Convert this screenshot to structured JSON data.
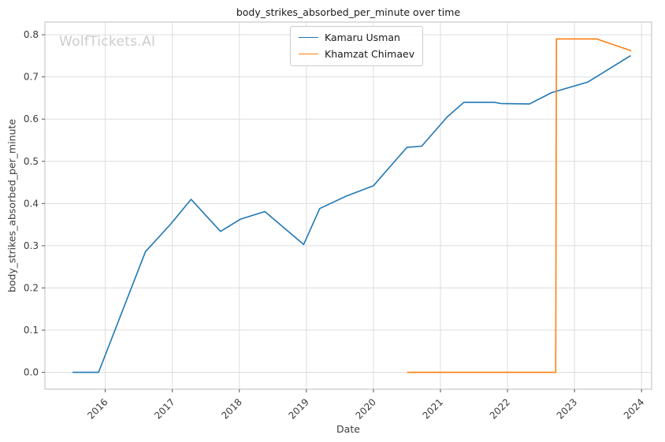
{
  "chart_data": {
    "type": "line",
    "title": "body_strikes_absorbed_per_minute over time",
    "xlabel": "Date",
    "ylabel": "body_strikes_absorbed_per_minute",
    "watermark": "WolfTickets.AI",
    "grid": true,
    "legend_position": "upper center",
    "xlim": [
      2015.1,
      2024.15
    ],
    "ylim": [
      -0.04,
      0.83
    ],
    "x_tick_values": [
      2016,
      2017,
      2018,
      2019,
      2020,
      2021,
      2022,
      2023,
      2024
    ],
    "x_tick_labels": [
      "2016",
      "2017",
      "2018",
      "2019",
      "2020",
      "2021",
      "2022",
      "2023",
      "2024"
    ],
    "y_tick_values": [
      0.0,
      0.1,
      0.2,
      0.3,
      0.4,
      0.5,
      0.6,
      0.7,
      0.8
    ],
    "y_tick_labels": [
      "0.0",
      "0.1",
      "0.2",
      "0.3",
      "0.4",
      "0.5",
      "0.6",
      "0.7",
      "0.8"
    ],
    "style": {
      "background_color": "#ffffff",
      "grid_color": "#dddde2",
      "spine_color": "#c9c9ce",
      "tick_color": "#555555",
      "tick_label_color": "#3b3b3b",
      "title_color": "#1a1a1a",
      "watermark_color": "#cccccc"
    },
    "series": [
      {
        "name": "Kamaru Usman",
        "color": "#1f77b4",
        "points": [
          [
            2015.52,
            0.0
          ],
          [
            2015.9,
            0.0
          ],
          [
            2016.6,
            0.286
          ],
          [
            2016.98,
            0.352
          ],
          [
            2017.28,
            0.41
          ],
          [
            2017.72,
            0.334
          ],
          [
            2018.02,
            0.363
          ],
          [
            2018.38,
            0.381
          ],
          [
            2018.96,
            0.303
          ],
          [
            2019.2,
            0.388
          ],
          [
            2019.6,
            0.418
          ],
          [
            2020.0,
            0.442
          ],
          [
            2020.5,
            0.533
          ],
          [
            2020.72,
            0.536
          ],
          [
            2021.1,
            0.605
          ],
          [
            2021.35,
            0.64
          ],
          [
            2021.8,
            0.64
          ],
          [
            2021.9,
            0.637
          ],
          [
            2022.33,
            0.636
          ],
          [
            2022.66,
            0.663
          ],
          [
            2023.2,
            0.688
          ],
          [
            2023.83,
            0.75
          ]
        ]
      },
      {
        "name": "Khamzat Chimaev",
        "color": "#ff7f0e",
        "points": [
          [
            2020.51,
            0.0
          ],
          [
            2022.72,
            0.0
          ],
          [
            2022.73,
            0.79
          ],
          [
            2023.33,
            0.79
          ],
          [
            2023.77,
            0.766
          ],
          [
            2023.84,
            0.762
          ]
        ]
      }
    ]
  }
}
